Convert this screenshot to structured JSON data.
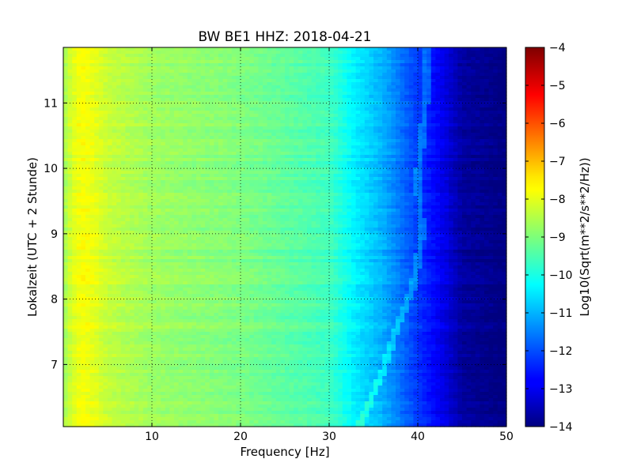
{
  "chart_data": {
    "type": "heatmap",
    "title": "BW BE1 HHZ: 2018-04-21",
    "xlabel": "Frequency [Hz]",
    "ylabel": "Lokalzeit (UTC + 2 Stunde)",
    "xlim": [
      0,
      50
    ],
    "ylim": [
      11.85,
      6.05
    ],
    "xticks": [
      10,
      20,
      30,
      40,
      50
    ],
    "yticks": [
      7,
      8,
      9,
      10,
      11
    ],
    "grid": true,
    "colorbar": {
      "label": "Log10(Sqrt(m**2/s**2/Hz))",
      "range": [
        -14,
        -4
      ],
      "ticks": [
        -4,
        -5,
        -6,
        -7,
        -8,
        -9,
        -10,
        -11,
        -12,
        -13,
        -14
      ],
      "colormap": "jet"
    },
    "approx_level_by_frequency": {
      "frequency_hz": [
        0,
        1,
        2,
        3,
        5,
        10,
        20,
        30,
        33,
        36,
        40,
        43,
        45,
        50
      ],
      "log10_amplitude": [
        -8.7,
        -8.1,
        -7.8,
        -7.9,
        -8.3,
        -8.7,
        -9.0,
        -9.6,
        -10.4,
        -11.0,
        -12.2,
        -13.0,
        -13.7,
        -14.0
      ]
    },
    "noisy_time_bands_hours": [
      6.15,
      6.47,
      6.95,
      7.2,
      7.95,
      8.35,
      8.55,
      8.72,
      9.15,
      9.45,
      9.78,
      10.2,
      10.34,
      10.67,
      10.95,
      11.45,
      11.7
    ],
    "drifting_line": {
      "time_hours": [
        6.1,
        6.8,
        7.5,
        8.2,
        9.0,
        9.8,
        10.5,
        11.2
      ],
      "frequency_hz": [
        33.5,
        35.8,
        37.5,
        39.5,
        40.5,
        40.0,
        40.5,
        41.0
      ]
    }
  }
}
